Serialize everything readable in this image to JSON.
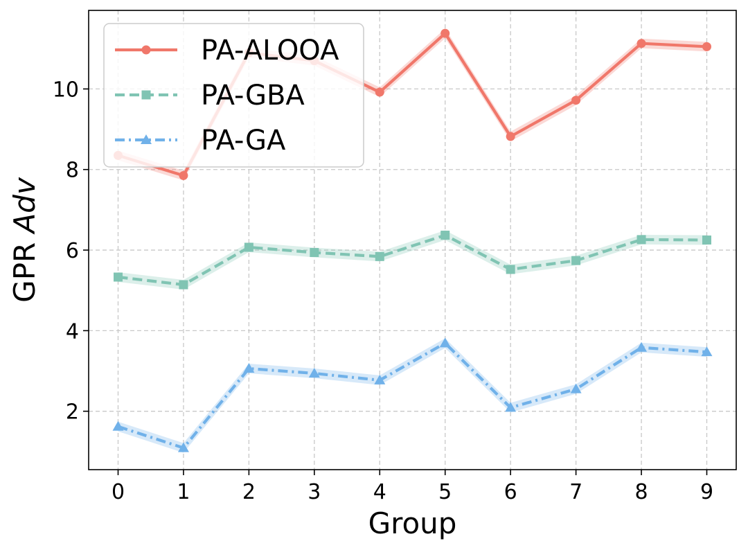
{
  "chart_data": {
    "type": "line",
    "xlabel": "Group",
    "ylabel_prefix": "GPR ",
    "ylabel_italic": "Adv",
    "x": [
      0,
      1,
      2,
      3,
      4,
      5,
      6,
      7,
      8,
      9
    ],
    "xlim": [
      -0.45,
      9.45
    ],
    "ylim": [
      0.55,
      11.95
    ],
    "yticks": [
      2,
      4,
      6,
      8,
      10
    ],
    "grid": true,
    "legend_position": "top-left",
    "series": [
      {
        "name": "PA-ALOOA",
        "color": "#f0776a",
        "marker": "circle",
        "linestyle": "solid",
        "values": [
          8.35,
          7.85,
          10.9,
          10.7,
          9.92,
          11.38,
          8.82,
          9.72,
          11.13,
          11.05
        ],
        "band": 0.12
      },
      {
        "name": "PA-GBA",
        "color": "#80c4b3",
        "marker": "square",
        "linestyle": "dashed",
        "values": [
          5.33,
          5.14,
          6.07,
          5.94,
          5.84,
          6.37,
          5.52,
          5.74,
          6.26,
          6.25
        ],
        "band": 0.12
      },
      {
        "name": "PA-GA",
        "color": "#70b1e9",
        "marker": "triangle",
        "linestyle": "dashdot",
        "values": [
          1.62,
          1.09,
          3.06,
          2.94,
          2.77,
          3.69,
          2.09,
          2.55,
          3.58,
          3.47
        ],
        "band": 0.12
      }
    ]
  }
}
